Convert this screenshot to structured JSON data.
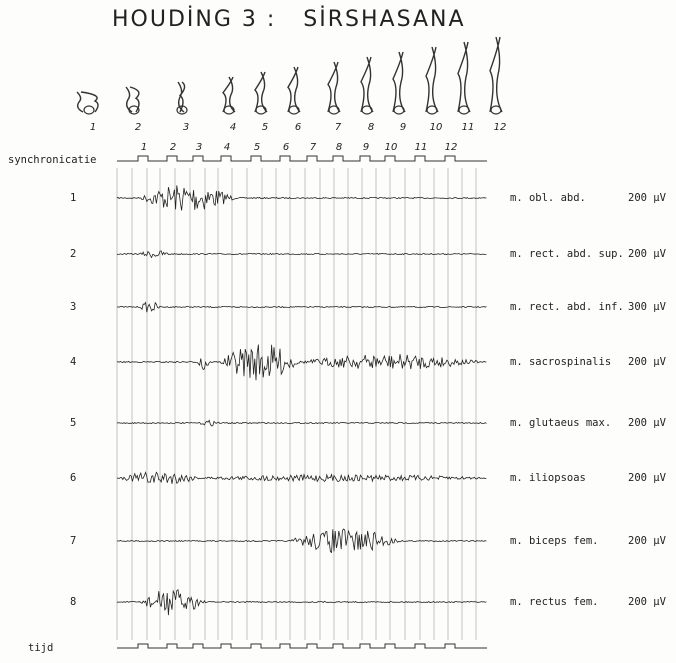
{
  "header": {
    "title": "HOUDİNG 3 :   SİRSHASANA"
  },
  "figures": [
    "1",
    "2",
    "3",
    "4",
    "5",
    "6",
    "7",
    "8",
    "9",
    "10",
    "11",
    "12"
  ],
  "sync": {
    "label": "synchronicatie",
    "marks": [
      "1",
      "2",
      "3",
      "4",
      "5",
      "6",
      "7",
      "8",
      "9",
      "10",
      "11",
      "12"
    ]
  },
  "channels": [
    {
      "number": "1",
      "muscle": "m. obl. abd.",
      "amplitude": "200 µV"
    },
    {
      "number": "2",
      "muscle": "m. rect. abd. sup.",
      "amplitude": "200 µV"
    },
    {
      "number": "3",
      "muscle": "m. rect. abd. inf.",
      "amplitude": "300 µV"
    },
    {
      "number": "4",
      "muscle": "m. sacrospinalis",
      "amplitude": "200 µV"
    },
    {
      "number": "5",
      "muscle": "m. glutaeus max.",
      "amplitude": "200 µV"
    },
    {
      "number": "6",
      "muscle": "m. iliopsoas",
      "amplitude": "200 µV"
    },
    {
      "number": "7",
      "muscle": "m. biceps fem.",
      "amplitude": "200 µV"
    },
    {
      "number": "8",
      "muscle": "m. rectus fem.",
      "amplitude": "200 µV"
    }
  ],
  "time": {
    "label": "tijd"
  }
}
